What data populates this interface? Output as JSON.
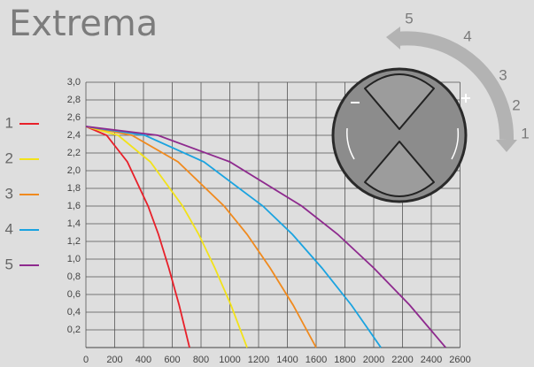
{
  "chart_data": {
    "type": "line",
    "title": "Extrema",
    "xlim": [
      0,
      2600
    ],
    "ylim": [
      0,
      3.0
    ],
    "xticks": [
      0,
      200,
      400,
      600,
      800,
      1000,
      1200,
      1400,
      1600,
      1800,
      2000,
      2200,
      2400,
      2600
    ],
    "yticks": [
      {
        "value": 0.2,
        "label": "0,2"
      },
      {
        "value": 0.4,
        "label": "0,4"
      },
      {
        "value": 0.6,
        "label": "0,6"
      },
      {
        "value": 0.8,
        "label": "0,8"
      },
      {
        "value": 1.0,
        "label": "1,0"
      },
      {
        "value": 1.2,
        "label": "1,2"
      },
      {
        "value": 1.4,
        "label": "1,4"
      },
      {
        "value": 1.6,
        "label": "1,6"
      },
      {
        "value": 1.8,
        "label": "1,8"
      },
      {
        "value": 2.0,
        "label": "2,0"
      },
      {
        "value": 2.2,
        "label": "2,2"
      },
      {
        "value": 2.4,
        "label": "2,4"
      },
      {
        "value": 2.6,
        "label": "2,6"
      },
      {
        "value": 2.8,
        "label": "2,8"
      },
      {
        "value": 3.0,
        "label": "3,0"
      }
    ],
    "grid": true,
    "series": [
      {
        "name": "1",
        "color": "#e8202a",
        "x": [
          0,
          144,
          288,
          432,
          504,
          576,
          648,
          684,
          720
        ],
        "values": [
          2.5,
          2.4,
          2.1,
          1.6,
          1.28,
          0.9,
          0.48,
          0.24,
          0
        ]
      },
      {
        "name": "2",
        "color": "#f2e21a",
        "x": [
          0,
          224,
          448,
          672,
          784,
          896,
          1008,
          1064,
          1120
        ],
        "values": [
          2.5,
          2.4,
          2.1,
          1.6,
          1.28,
          0.9,
          0.48,
          0.24,
          0
        ]
      },
      {
        "name": "3",
        "color": "#f08a1e",
        "x": [
          0,
          320,
          640,
          960,
          1120,
          1280,
          1440,
          1520,
          1600
        ],
        "values": [
          2.5,
          2.4,
          2.1,
          1.6,
          1.28,
          0.9,
          0.48,
          0.24,
          0
        ]
      },
      {
        "name": "4",
        "color": "#1aa3e0",
        "x": [
          0,
          410,
          820,
          1230,
          1435,
          1640,
          1845,
          1948,
          2050
        ],
        "values": [
          2.5,
          2.4,
          2.1,
          1.6,
          1.28,
          0.9,
          0.48,
          0.24,
          0
        ]
      },
      {
        "name": "5",
        "color": "#8e2a8e",
        "x": [
          0,
          500,
          1000,
          1500,
          1750,
          2000,
          2250,
          2375,
          2500
        ],
        "values": [
          2.5,
          2.4,
          2.1,
          1.6,
          1.28,
          0.9,
          0.48,
          0.24,
          0
        ]
      }
    ]
  },
  "dial": {
    "levels": [
      "5",
      "4",
      "3",
      "2",
      "1"
    ]
  }
}
